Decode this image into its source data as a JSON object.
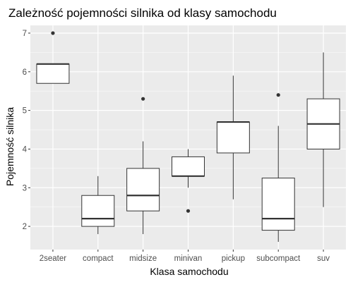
{
  "chart_data": {
    "type": "box",
    "title": "Zależność pojemności silnika od klasy samochodu",
    "xlabel": "Klasa samochodu",
    "ylabel": "Pojemność silnika",
    "categories": [
      "2seater",
      "compact",
      "midsize",
      "minivan",
      "pickup",
      "subcompact",
      "suv"
    ],
    "ylim": [
      1.4,
      7.2
    ],
    "yticks": [
      2,
      3,
      4,
      5,
      6,
      7
    ],
    "ytick_labels": [
      "2",
      "3",
      "4",
      "5",
      "6",
      "7"
    ],
    "grid": true,
    "legend": "none",
    "boxes": [
      {
        "category": "2seater",
        "whisker_low": 5.7,
        "q1": 5.7,
        "median": 6.2,
        "q3": 6.2,
        "whisker_high": 6.2,
        "outliers": [
          7.0
        ]
      },
      {
        "category": "compact",
        "whisker_low": 1.8,
        "q1": 2.0,
        "median": 2.2,
        "q3": 2.8,
        "whisker_high": 3.3,
        "outliers": []
      },
      {
        "category": "midsize",
        "whisker_low": 1.8,
        "q1": 2.4,
        "median": 2.8,
        "q3": 3.5,
        "whisker_high": 4.2,
        "outliers": [
          5.3
        ]
      },
      {
        "category": "minivan",
        "whisker_low": 3.0,
        "q1": 3.3,
        "median": 3.3,
        "q3": 3.8,
        "whisker_high": 4.0,
        "outliers": [
          2.4
        ]
      },
      {
        "category": "pickup",
        "whisker_low": 2.7,
        "q1": 3.9,
        "median": 4.7,
        "q3": 4.7,
        "whisker_high": 5.9,
        "outliers": []
      },
      {
        "category": "subcompact",
        "whisker_low": 1.6,
        "q1": 1.9,
        "median": 2.2,
        "q3": 3.25,
        "whisker_high": 4.6,
        "outliers": [
          5.4
        ]
      },
      {
        "category": "suv",
        "whisker_low": 2.5,
        "q1": 4.0,
        "median": 4.65,
        "q3": 5.3,
        "whisker_high": 6.5,
        "outliers": []
      }
    ],
    "colors": {
      "panel": "#ebebeb",
      "grid_major": "#ffffff",
      "box_fill": "#ffffff",
      "box_stroke": "#333333",
      "tick_text": "#4d4d4d",
      "tick_mark": "#333333"
    }
  }
}
